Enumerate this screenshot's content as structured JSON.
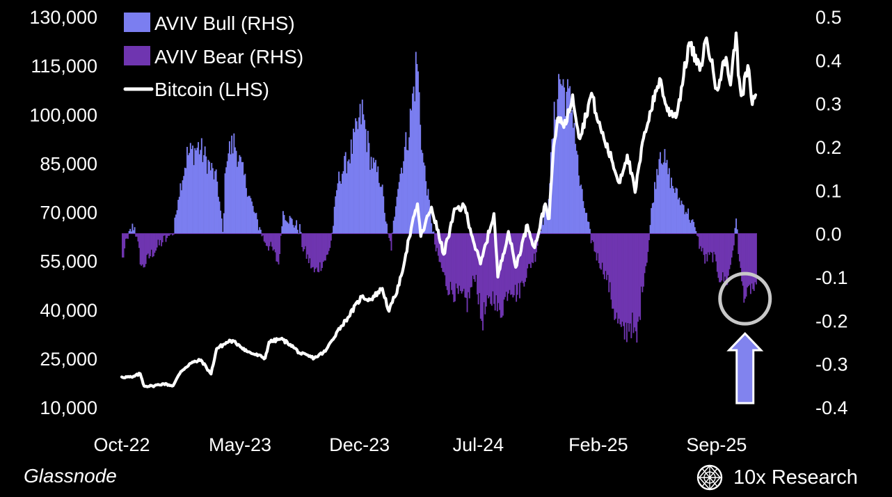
{
  "chart_data": {
    "type": "bar",
    "x_ticks": [
      "Oct-22",
      "May-23",
      "Dec-23",
      "Jul-24",
      "Feb-25",
      "Sep-25"
    ],
    "x_range": [
      "2022-10-01",
      "2025-11-15"
    ],
    "left_axis": {
      "ticks": [
        "130,000",
        "115,000",
        "100,000",
        "85,000",
        "70,000",
        "55,000",
        "40,000",
        "25,000",
        "10,000"
      ],
      "range": [
        10000,
        130000
      ]
    },
    "right_axis": {
      "ticks": [
        "0.5",
        "0.4",
        "0.3",
        "0.2",
        "0.1",
        "0.0",
        "-0.1",
        "-0.2",
        "-0.3",
        "-0.4"
      ],
      "range": [
        -0.4,
        0.5
      ]
    },
    "legend": [
      {
        "label": "AVIV Bull (RHS)",
        "color": "#7b7ef0"
      },
      {
        "label": "AVIV Bear (RHS)",
        "color": "#6f35b0"
      },
      {
        "label": "Bitcoin (LHS)",
        "color": "#ffffff"
      }
    ],
    "series": [
      {
        "name": "AVIV Bull (RHS)",
        "axis": "right",
        "type": "bar",
        "color": "#7b7ef0",
        "note": "positive AVIV values",
        "values": []
      },
      {
        "name": "AVIV Bear (RHS)",
        "axis": "right",
        "type": "bar",
        "color": "#6f35b0",
        "note": "negative AVIV values",
        "values": []
      },
      {
        "name": "Bitcoin (LHS)",
        "axis": "left",
        "type": "line",
        "color": "#ffffff",
        "points": [
          [
            "2022-10-01",
            19300
          ],
          [
            "2022-10-20",
            19200
          ],
          [
            "2022-11-03",
            20300
          ],
          [
            "2022-11-10",
            16500
          ],
          [
            "2022-11-25",
            16500
          ],
          [
            "2022-12-15",
            17200
          ],
          [
            "2023-01-01",
            16600
          ],
          [
            "2023-01-15",
            21000
          ],
          [
            "2023-02-01",
            23500
          ],
          [
            "2023-02-20",
            24500
          ],
          [
            "2023-03-10",
            20200
          ],
          [
            "2023-03-20",
            28000
          ],
          [
            "2023-04-14",
            30500
          ],
          [
            "2023-04-28",
            29300
          ],
          [
            "2023-05-15",
            27000
          ],
          [
            "2023-06-15",
            25100
          ],
          [
            "2023-06-22",
            30000
          ],
          [
            "2023-07-13",
            31000
          ],
          [
            "2023-07-30",
            29300
          ],
          [
            "2023-08-17",
            26500
          ],
          [
            "2023-09-11",
            25100
          ],
          [
            "2023-10-01",
            27200
          ],
          [
            "2023-10-23",
            33500
          ],
          [
            "2023-11-10",
            37500
          ],
          [
            "2023-12-05",
            44000
          ],
          [
            "2023-12-20",
            43000
          ],
          [
            "2024-01-11",
            46500
          ],
          [
            "2024-01-23",
            39500
          ],
          [
            "2024-02-10",
            47500
          ],
          [
            "2024-02-28",
            62000
          ],
          [
            "2024-03-14",
            72500
          ],
          [
            "2024-03-20",
            62500
          ],
          [
            "2024-04-08",
            71500
          ],
          [
            "2024-04-30",
            57000
          ],
          [
            "2024-05-21",
            71000
          ],
          [
            "2024-06-07",
            71500
          ],
          [
            "2024-06-24",
            60000
          ],
          [
            "2024-07-05",
            54000
          ],
          [
            "2024-07-29",
            69500
          ],
          [
            "2024-08-05",
            50000
          ],
          [
            "2024-08-24",
            64000
          ],
          [
            "2024-09-06",
            53000
          ],
          [
            "2024-09-27",
            66000
          ],
          [
            "2024-10-10",
            59000
          ],
          [
            "2024-10-29",
            72500
          ],
          [
            "2024-11-05",
            68000
          ],
          [
            "2024-11-13",
            90000
          ],
          [
            "2024-11-22",
            99000
          ],
          [
            "2024-12-05",
            97000
          ],
          [
            "2024-12-17",
            106000
          ],
          [
            "2024-12-30",
            92500
          ],
          [
            "2025-01-20",
            106500
          ],
          [
            "2025-02-01",
            97500
          ],
          [
            "2025-02-25",
            86000
          ],
          [
            "2025-03-10",
            79000
          ],
          [
            "2025-03-25",
            87500
          ],
          [
            "2025-04-08",
            76000
          ],
          [
            "2025-04-25",
            94500
          ],
          [
            "2025-05-22",
            111000
          ],
          [
            "2025-06-05",
            101000
          ],
          [
            "2025-06-22",
            100000
          ],
          [
            "2025-07-14",
            122000
          ],
          [
            "2025-08-02",
            113500
          ],
          [
            "2025-08-14",
            123500
          ],
          [
            "2025-09-01",
            108000
          ],
          [
            "2025-09-18",
            117500
          ],
          [
            "2025-09-26",
            109000
          ],
          [
            "2025-10-06",
            125000
          ],
          [
            "2025-10-10",
            112000
          ],
          [
            "2025-10-17",
            106000
          ],
          [
            "2025-10-27",
            115000
          ],
          [
            "2025-11-04",
            103000
          ],
          [
            "2025-11-10",
            106000
          ]
        ]
      }
    ],
    "annotations": [
      {
        "type": "circle",
        "label": "",
        "x": "2025-10-22",
        "y_right": -0.15,
        "color": "#c8c8c8"
      },
      {
        "type": "arrow-up",
        "label": "",
        "x": "2025-10-22",
        "color": "#8183ee"
      }
    ],
    "grid": false,
    "legend_position": "top-left"
  },
  "source": "Glassnode",
  "brand": "10x Research",
  "brand_icon": "globe-lattice-icon"
}
